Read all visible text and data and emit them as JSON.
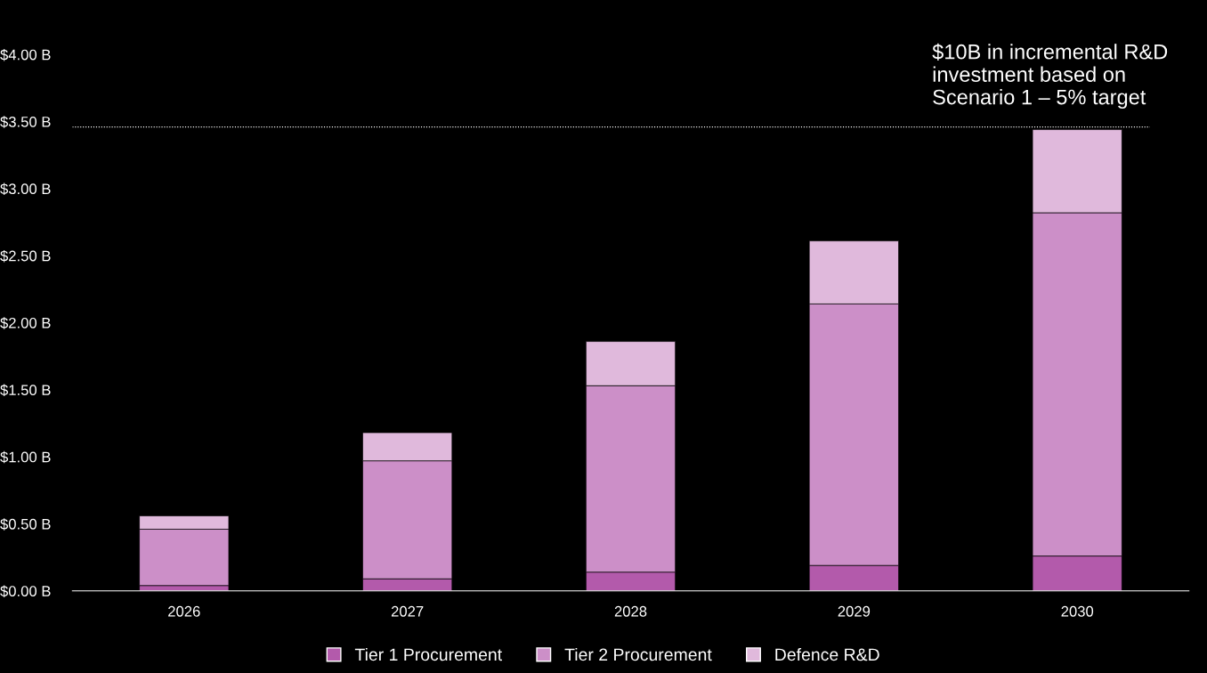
{
  "chart_data": {
    "type": "bar",
    "stacked": true,
    "categories": [
      "2026",
      "2027",
      "2028",
      "2029",
      "2030"
    ],
    "series": [
      {
        "name": "Tier 1 Procurement",
        "color": "#b35aab",
        "values": [
          0.04,
          0.09,
          0.14,
          0.19,
          0.26
        ]
      },
      {
        "name": "Tier 2 Procurement",
        "color": "#cc8fc8",
        "values": [
          0.42,
          0.88,
          1.39,
          1.95,
          2.56
        ]
      },
      {
        "name": "Defence R&D",
        "color": "#e0b9dc",
        "values": [
          0.1,
          0.21,
          0.33,
          0.47,
          0.62
        ]
      }
    ],
    "ylim": [
      0,
      4
    ],
    "yticks": [
      {
        "value": 0,
        "label": "$0.00 B"
      },
      {
        "value": 0.5,
        "label": "$0.50 B"
      },
      {
        "value": 1,
        "label": "$1.00 B"
      },
      {
        "value": 1.5,
        "label": "$1.50 B"
      },
      {
        "value": 2,
        "label": "$2.00 B"
      },
      {
        "value": 2.5,
        "label": "$2.50 B"
      },
      {
        "value": 3,
        "label": "$3.00 B"
      },
      {
        "value": 3.5,
        "label": "$3.50 B"
      },
      {
        "value": 4,
        "label": "$4.00 B"
      }
    ],
    "ref_lines": [
      {
        "axis": "y",
        "value": 3.46,
        "color": "#ffffff",
        "line_style": "dotted"
      }
    ],
    "annotations": [
      "$10B in incremental R&D investment based on Scenario 1 – 5% target"
    ],
    "grid": false,
    "legend": "bottom"
  }
}
